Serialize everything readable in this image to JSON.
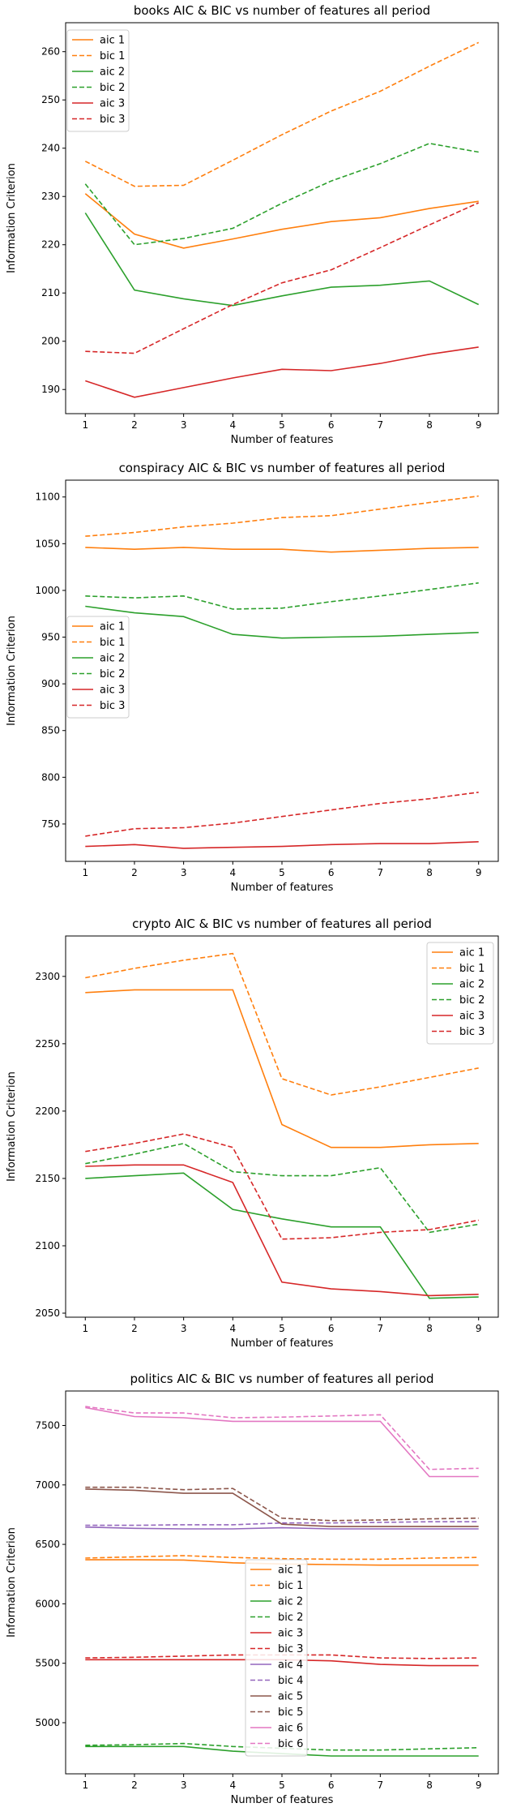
{
  "chart_data": [
    {
      "type": "line",
      "title": "books AIC & BIC vs number of features all period",
      "xlabel": "Number of features",
      "ylabel": "Information Criterion",
      "x": [
        1,
        2,
        3,
        4,
        5,
        6,
        7,
        8,
        9
      ],
      "ylim": [
        185,
        266
      ],
      "yticks": [
        190,
        200,
        210,
        220,
        230,
        240,
        250,
        260
      ],
      "legend_position": "top-left",
      "series": [
        {
          "name": "aic 1",
          "color": "#ff7f0e",
          "dashed": false,
          "values": [
            230.6,
            222.2,
            219.3,
            221.2,
            223.2,
            224.8,
            225.6,
            227.5,
            229.0
          ]
        },
        {
          "name": "bic 1",
          "color": "#ff7f0e",
          "dashed": true,
          "values": [
            237.3,
            232.1,
            232.3,
            237.5,
            242.8,
            247.7,
            251.8,
            257.0,
            261.9
          ]
        },
        {
          "name": "aic 2",
          "color": "#2ca02c",
          "dashed": false,
          "values": [
            226.6,
            210.6,
            208.8,
            207.4,
            209.4,
            211.2,
            211.6,
            212.5,
            207.6
          ]
        },
        {
          "name": "bic 2",
          "color": "#2ca02c",
          "dashed": true,
          "values": [
            232.6,
            220.0,
            221.3,
            223.4,
            228.6,
            233.2,
            236.8,
            241.0,
            239.2
          ]
        },
        {
          "name": "aic 3",
          "color": "#d62728",
          "dashed": false,
          "values": [
            191.8,
            188.4,
            190.4,
            192.4,
            194.2,
            193.9,
            195.4,
            197.3,
            198.8
          ]
        },
        {
          "name": "bic 3",
          "color": "#d62728",
          "dashed": true,
          "values": [
            197.9,
            197.5,
            202.6,
            207.6,
            212.1,
            214.8,
            219.4,
            224.1,
            228.7
          ]
        }
      ]
    },
    {
      "type": "line",
      "title": "conspiracy AIC & BIC vs number of features all period",
      "xlabel": "Number of features",
      "ylabel": "Information Criterion",
      "x": [
        1,
        2,
        3,
        4,
        5,
        6,
        7,
        8,
        9
      ],
      "ylim": [
        710,
        1118
      ],
      "yticks": [
        750,
        800,
        850,
        900,
        950,
        1000,
        1050,
        1100
      ],
      "legend_position": "center-left",
      "series": [
        {
          "name": "aic 1",
          "color": "#ff7f0e",
          "dashed": false,
          "values": [
            1046,
            1044,
            1046,
            1044,
            1044,
            1041,
            1043,
            1045,
            1046
          ]
        },
        {
          "name": "bic 1",
          "color": "#ff7f0e",
          "dashed": true,
          "values": [
            1058,
            1062,
            1068,
            1072,
            1078,
            1080,
            1087,
            1094,
            1101
          ]
        },
        {
          "name": "aic 2",
          "color": "#2ca02c",
          "dashed": false,
          "values": [
            983,
            976,
            972,
            953,
            949,
            950,
            951,
            953,
            955
          ]
        },
        {
          "name": "bic 2",
          "color": "#2ca02c",
          "dashed": true,
          "values": [
            994,
            992,
            994,
            980,
            981,
            988,
            994,
            1001,
            1008
          ]
        },
        {
          "name": "aic 3",
          "color": "#d62728",
          "dashed": false,
          "values": [
            726,
            728,
            724,
            725,
            726,
            728,
            729,
            729,
            731
          ]
        },
        {
          "name": "bic 3",
          "color": "#d62728",
          "dashed": true,
          "values": [
            737,
            745,
            746,
            751,
            758,
            765,
            772,
            777,
            784
          ]
        }
      ]
    },
    {
      "type": "line",
      "title": "crypto AIC & BIC vs number of features all period",
      "xlabel": "Number of features",
      "ylabel": "Information Criterion",
      "x": [
        1,
        2,
        3,
        4,
        5,
        6,
        7,
        8,
        9
      ],
      "ylim": [
        2047,
        2330
      ],
      "yticks": [
        2050,
        2100,
        2150,
        2200,
        2250,
        2300
      ],
      "legend_position": "top-right",
      "series": [
        {
          "name": "aic 1",
          "color": "#ff7f0e",
          "dashed": false,
          "values": [
            2288,
            2290,
            2290,
            2290,
            2190,
            2173,
            2173,
            2175,
            2176
          ]
        },
        {
          "name": "bic 1",
          "color": "#ff7f0e",
          "dashed": true,
          "values": [
            2299,
            2306,
            2312,
            2317,
            2224,
            2212,
            2218,
            2225,
            2232
          ]
        },
        {
          "name": "aic 2",
          "color": "#2ca02c",
          "dashed": false,
          "values": [
            2150,
            2152,
            2154,
            2127,
            2120,
            2114,
            2114,
            2061,
            2062
          ]
        },
        {
          "name": "bic 2",
          "color": "#2ca02c",
          "dashed": true,
          "values": [
            2161,
            2168,
            2176,
            2155,
            2152,
            2152,
            2158,
            2110,
            2116
          ]
        },
        {
          "name": "aic 3",
          "color": "#d62728",
          "dashed": false,
          "values": [
            2159,
            2160,
            2160,
            2147,
            2073,
            2068,
            2066,
            2063,
            2064
          ]
        },
        {
          "name": "bic 3",
          "color": "#d62728",
          "dashed": true,
          "values": [
            2170,
            2176,
            2183,
            2173,
            2105,
            2106,
            2110,
            2112,
            2119
          ]
        }
      ]
    },
    {
      "type": "line",
      "title": "politics AIC & BIC vs number of features all period",
      "xlabel": "Number of features",
      "ylabel": "Information Criterion",
      "x": [
        1,
        2,
        3,
        4,
        5,
        6,
        7,
        8,
        9
      ],
      "ylim": [
        4570,
        7790
      ],
      "yticks": [
        5000,
        5500,
        6000,
        6500,
        7000,
        7500
      ],
      "legend_position": "bottom-center",
      "series": [
        {
          "name": "aic 1",
          "color": "#ff7f0e",
          "dashed": false,
          "values": [
            6370,
            6370,
            6368,
            6345,
            6335,
            6330,
            6325,
            6325,
            6325
          ]
        },
        {
          "name": "bic 1",
          "color": "#ff7f0e",
          "dashed": true,
          "values": [
            6385,
            6395,
            6405,
            6390,
            6380,
            6375,
            6375,
            6385,
            6390
          ]
        },
        {
          "name": "aic 2",
          "color": "#2ca02c",
          "dashed": false,
          "values": [
            4800,
            4800,
            4800,
            4760,
            4740,
            4720,
            4720,
            4720,
            4720
          ]
        },
        {
          "name": "bic 2",
          "color": "#2ca02c",
          "dashed": true,
          "values": [
            4810,
            4815,
            4825,
            4800,
            4785,
            4770,
            4770,
            4780,
            4790
          ]
        },
        {
          "name": "aic 3",
          "color": "#d62728",
          "dashed": false,
          "values": [
            5530,
            5530,
            5530,
            5530,
            5530,
            5520,
            5490,
            5480,
            5480
          ]
        },
        {
          "name": "bic 3",
          "color": "#d62728",
          "dashed": true,
          "values": [
            5545,
            5550,
            5560,
            5570,
            5570,
            5570,
            5545,
            5540,
            5545
          ]
        },
        {
          "name": "aic 4",
          "color": "#9467bd",
          "dashed": false,
          "values": [
            6645,
            6635,
            6630,
            6630,
            6640,
            6630,
            6630,
            6630,
            6630
          ]
        },
        {
          "name": "bic 4",
          "color": "#9467bd",
          "dashed": true,
          "values": [
            6660,
            6660,
            6665,
            6665,
            6680,
            6680,
            6685,
            6690,
            6690
          ]
        },
        {
          "name": "aic 5",
          "color": "#8c564b",
          "dashed": false,
          "values": [
            6965,
            6955,
            6930,
            6930,
            6670,
            6650,
            6650,
            6650,
            6650
          ]
        },
        {
          "name": "bic 5",
          "color": "#8c564b",
          "dashed": true,
          "values": [
            6980,
            6980,
            6960,
            6970,
            6720,
            6700,
            6705,
            6715,
            6720
          ]
        },
        {
          "name": "aic 6",
          "color": "#e377c2",
          "dashed": false,
          "values": [
            7650,
            7575,
            7565,
            7535,
            7535,
            7535,
            7535,
            7070,
            7070
          ]
        },
        {
          "name": "bic 6",
          "color": "#e377c2",
          "dashed": true,
          "values": [
            7660,
            7605,
            7605,
            7565,
            7570,
            7580,
            7590,
            7130,
            7140
          ]
        }
      ]
    }
  ]
}
